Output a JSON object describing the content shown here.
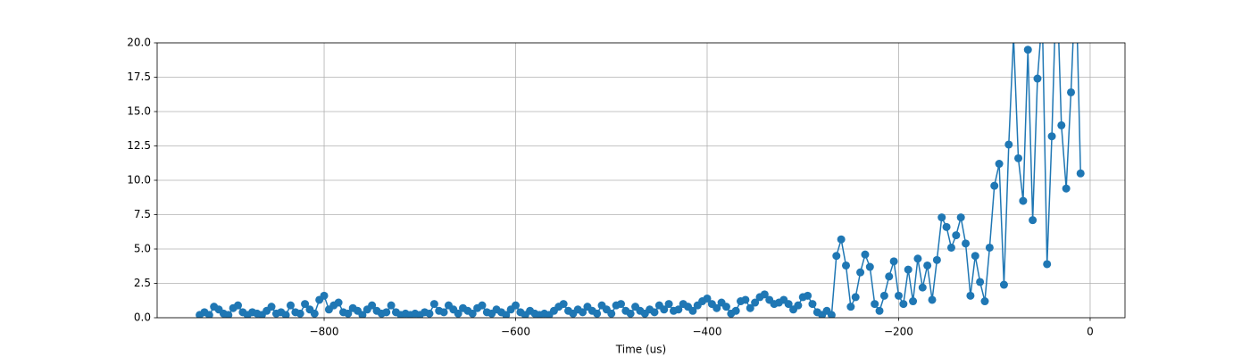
{
  "chart_data": {
    "type": "line",
    "xlabel": "Time (us)",
    "x": [
      -930,
      -925,
      -920,
      -915,
      -910,
      -905,
      -900,
      -895,
      -890,
      -885,
      -880,
      -875,
      -870,
      -865,
      -860,
      -855,
      -850,
      -845,
      -840,
      -835,
      -830,
      -825,
      -820,
      -815,
      -810,
      -805,
      -800,
      -795,
      -790,
      -785,
      -780,
      -775,
      -770,
      -765,
      -760,
      -755,
      -750,
      -745,
      -740,
      -735,
      -730,
      -725,
      -720,
      -715,
      -710,
      -705,
      -700,
      -695,
      -690,
      -685,
      -680,
      -675,
      -670,
      -665,
      -660,
      -655,
      -650,
      -645,
      -640,
      -635,
      -630,
      -625,
      -620,
      -615,
      -610,
      -605,
      -600,
      -595,
      -590,
      -585,
      -580,
      -575,
      -570,
      -565,
      -560,
      -555,
      -550,
      -545,
      -540,
      -535,
      -530,
      -525,
      -520,
      -515,
      -510,
      -505,
      -500,
      -495,
      -490,
      -485,
      -480,
      -475,
      -470,
      -465,
      -460,
      -455,
      -450,
      -445,
      -440,
      -435,
      -430,
      -425,
      -420,
      -415,
      -410,
      -405,
      -400,
      -395,
      -390,
      -385,
      -380,
      -375,
      -370,
      -365,
      -360,
      -355,
      -350,
      -345,
      -340,
      -335,
      -330,
      -325,
      -320,
      -315,
      -310,
      -305,
      -300,
      -295,
      -290,
      -285,
      -280,
      -275,
      -270,
      -265,
      -260,
      -255,
      -250,
      -245,
      -240,
      -235,
      -230,
      -225,
      -220,
      -215,
      -210,
      -205,
      -200,
      -195,
      -190,
      -185,
      -180,
      -175,
      -170,
      -165,
      -160,
      -155,
      -150,
      -145,
      -140,
      -135,
      -130,
      -125,
      -120,
      -115,
      -110,
      -105,
      -100,
      -95,
      -90,
      -85,
      -80,
      -75,
      -70,
      -65,
      -60,
      -55,
      -50,
      -45,
      -40,
      -35,
      -30,
      -25,
      -20,
      -15,
      -10
    ],
    "series": [
      {
        "color": "#1f77b4",
        "values": [
          0.2,
          0.4,
          0.2,
          0.8,
          0.6,
          0.3,
          0.2,
          0.7,
          0.9,
          0.4,
          0.2,
          0.4,
          0.3,
          0.2,
          0.5,
          0.8,
          0.3,
          0.4,
          0.2,
          0.9,
          0.4,
          0.3,
          1.0,
          0.6,
          0.3,
          1.3,
          1.6,
          0.6,
          0.9,
          1.1,
          0.4,
          0.3,
          0.7,
          0.5,
          0.2,
          0.6,
          0.9,
          0.5,
          0.3,
          0.4,
          0.9,
          0.4,
          0.2,
          0.3,
          0.2,
          0.3,
          0.2,
          0.4,
          0.3,
          1.0,
          0.5,
          0.4,
          0.9,
          0.6,
          0.3,
          0.7,
          0.5,
          0.3,
          0.7,
          0.9,
          0.4,
          0.3,
          0.6,
          0.4,
          0.2,
          0.6,
          0.9,
          0.4,
          0.2,
          0.5,
          0.3,
          0.2,
          0.3,
          0.2,
          0.5,
          0.8,
          1.0,
          0.5,
          0.3,
          0.6,
          0.4,
          0.8,
          0.5,
          0.3,
          0.9,
          0.6,
          0.3,
          0.9,
          1.0,
          0.5,
          0.3,
          0.8,
          0.5,
          0.3,
          0.6,
          0.4,
          0.9,
          0.6,
          1.0,
          0.5,
          0.6,
          1.0,
          0.8,
          0.5,
          0.9,
          1.2,
          1.4,
          1.0,
          0.7,
          1.1,
          0.8,
          0.3,
          0.5,
          1.2,
          1.3,
          0.7,
          1.1,
          1.5,
          1.7,
          1.3,
          1.0,
          1.1,
          1.3,
          1.0,
          0.6,
          0.9,
          1.5,
          1.6,
          1.0,
          0.4,
          0.2,
          0.5,
          0.2,
          4.5,
          5.7,
          3.8,
          0.8,
          1.5,
          3.3,
          4.6,
          3.7,
          1.0,
          0.5,
          1.6,
          3.0,
          4.1,
          1.6,
          1.0,
          3.5,
          1.2,
          4.3,
          2.2,
          3.8,
          1.3,
          4.2,
          7.3,
          6.6,
          5.1,
          6.0,
          7.3,
          5.4,
          1.6,
          4.5,
          2.6,
          1.2,
          5.1,
          9.6,
          11.2,
          2.4,
          12.6,
          20.5,
          11.6,
          8.5,
          19.5,
          7.1,
          17.4,
          22.0,
          3.9,
          13.2,
          25.0,
          14.0,
          9.4,
          16.4,
          25.0,
          10.5
        ]
      }
    ],
    "xlim": [
      -974.4,
      36.4
    ],
    "xticks": [
      {
        "value": -800,
        "label": "−800"
      },
      {
        "value": -600,
        "label": "−600"
      },
      {
        "value": -400,
        "label": "−400"
      },
      {
        "value": -200,
        "label": "−200"
      },
      0
    ],
    "ylim": [
      0,
      20
    ],
    "yticks": [
      {
        "value": 0,
        "label": "0.0"
      },
      2.5,
      {
        "value": 5,
        "label": "5.0"
      },
      7.5,
      {
        "value": 10,
        "label": "10.0"
      },
      12.5,
      {
        "value": 15,
        "label": "15.0"
      },
      17.5,
      {
        "value": 20,
        "label": "20.0"
      }
    ],
    "grid": true
  }
}
